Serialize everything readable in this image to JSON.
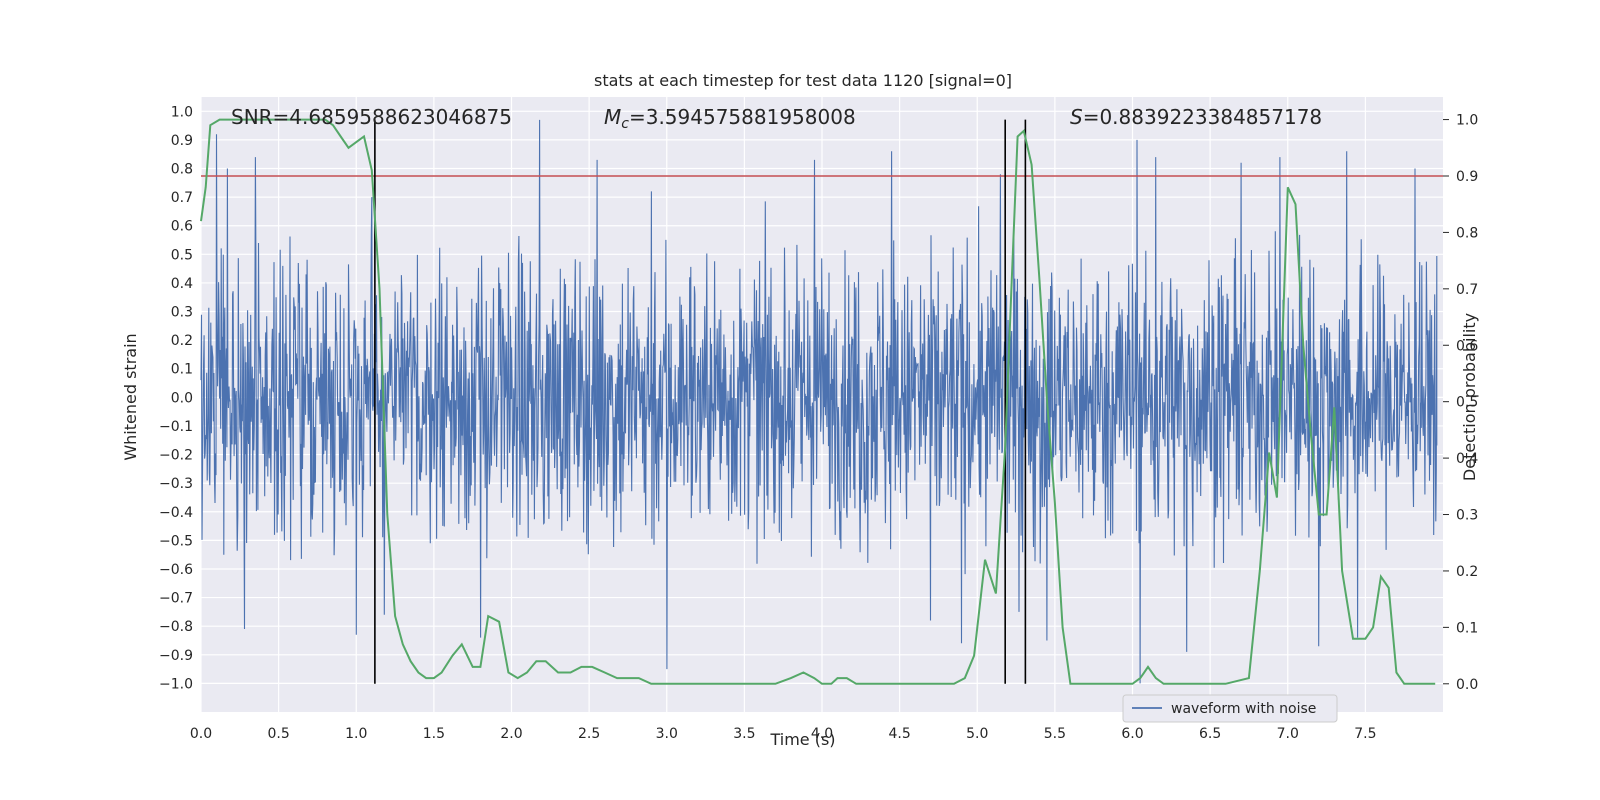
{
  "chart_data": {
    "type": "line",
    "title": "stats at each timestep for test data 1120 [signal=0]",
    "xlabel": "Time (s)",
    "ylabel_left": "Whitened strain",
    "ylabel_right": "Detection probability",
    "xlim": [
      0.0,
      8.0
    ],
    "ylim_left": [
      -1.1,
      1.05
    ],
    "ylim_right": [
      -0.05,
      1.04
    ],
    "x_ticks": [
      "0.0",
      "0.5",
      "1.0",
      "1.5",
      "2.0",
      "2.5",
      "3.0",
      "3.5",
      "4.0",
      "4.5",
      "5.0",
      "5.5",
      "6.0",
      "6.5",
      "7.0",
      "7.5"
    ],
    "x_tick_values": [
      0,
      0.5,
      1,
      1.5,
      2,
      2.5,
      3,
      3.5,
      4,
      4.5,
      5,
      5.5,
      6,
      6.5,
      7,
      7.5
    ],
    "y_left_ticks": [
      "1.0",
      "0.9",
      "0.8",
      "0.7",
      "0.6",
      "0.5",
      "0.4",
      "0.3",
      "0.2",
      "0.1",
      "0.0",
      "−0.1",
      "−0.2",
      "−0.3",
      "−0.4",
      "−0.5",
      "−0.6",
      "−0.7",
      "−0.8",
      "−0.9",
      "−1.0"
    ],
    "y_left_tick_values": [
      1.0,
      0.9,
      0.8,
      0.7,
      0.6,
      0.5,
      0.4,
      0.3,
      0.2,
      0.1,
      0.0,
      -0.1,
      -0.2,
      -0.3,
      -0.4,
      -0.5,
      -0.6,
      -0.7,
      -0.8,
      -0.9,
      -1.0
    ],
    "y_right_ticks": [
      "1.0",
      "0.9",
      "0.8",
      "0.7",
      "0.6",
      "0.5",
      "0.4",
      "0.3",
      "0.2",
      "0.1",
      "0.0"
    ],
    "y_right_tick_values": [
      1.0,
      0.9,
      0.8,
      0.7,
      0.6,
      0.5,
      0.4,
      0.3,
      0.2,
      0.1,
      0.0
    ],
    "threshold": 0.9,
    "vertical_lines": [
      1.12,
      5.18,
      5.31
    ],
    "annotations": {
      "snr": "SNR=4.6859588623046875",
      "mc_prefix": "M",
      "mc_sub": "c",
      "mc_value": "=3.594575881958008",
      "s_prefix": "S",
      "s_value": "=0.8839223384857178"
    },
    "legend": [
      "waveform with noise"
    ],
    "series": [
      {
        "name": "waveform with noise",
        "axis": "left",
        "color": "#4c72b0",
        "noise_amplitude": 0.45,
        "n_points": 2400,
        "spikes": [
          [
            0.1,
            0.92
          ],
          [
            0.17,
            0.8
          ],
          [
            0.35,
            0.84
          ],
          [
            0.28,
            -0.81
          ],
          [
            1.0,
            -0.83
          ],
          [
            1.18,
            -0.76
          ],
          [
            1.1,
            0.7
          ],
          [
            2.18,
            0.97
          ],
          [
            2.55,
            0.83
          ],
          [
            3.0,
            -0.95
          ],
          [
            3.95,
            0.83
          ],
          [
            4.45,
            0.86
          ],
          [
            4.9,
            -0.86
          ],
          [
            5.15,
            0.78
          ],
          [
            5.27,
            -0.75
          ],
          [
            5.45,
            -0.85
          ],
          [
            6.03,
            0.9
          ],
          [
            6.05,
            -1.0
          ],
          [
            6.35,
            -0.89
          ],
          [
            6.7,
            0.82
          ],
          [
            6.95,
            0.84
          ],
          [
            7.2,
            -0.87
          ],
          [
            7.38,
            0.86
          ],
          [
            7.45,
            -0.84
          ],
          [
            1.8,
            -0.84
          ],
          [
            2.9,
            0.72
          ],
          [
            4.7,
            -0.78
          ],
          [
            6.15,
            0.84
          ],
          [
            7.82,
            0.8
          ]
        ]
      },
      {
        "name": "detection probability",
        "axis": "right",
        "color": "#55a868",
        "x": [
          0.0,
          0.03,
          0.06,
          0.12,
          0.2,
          0.3,
          0.4,
          0.5,
          0.6,
          0.7,
          0.8,
          0.85,
          0.9,
          0.95,
          1.0,
          1.05,
          1.1,
          1.15,
          1.2,
          1.25,
          1.3,
          1.35,
          1.4,
          1.45,
          1.5,
          1.55,
          1.62,
          1.68,
          1.75,
          1.8,
          1.85,
          1.92,
          1.98,
          2.04,
          2.1,
          2.16,
          2.22,
          2.3,
          2.38,
          2.45,
          2.52,
          2.6,
          2.68,
          2.75,
          2.82,
          2.9,
          3.0,
          3.1,
          3.2,
          3.3,
          3.5,
          3.7,
          3.8,
          3.88,
          3.95,
          4.0,
          4.06,
          4.1,
          4.16,
          4.22,
          4.3,
          4.5,
          4.7,
          4.85,
          4.92,
          4.98,
          5.05,
          5.12,
          5.18,
          5.22,
          5.26,
          5.3,
          5.35,
          5.4,
          5.45,
          5.5,
          5.55,
          5.6,
          5.7,
          5.8,
          5.9,
          6.0,
          6.05,
          6.1,
          6.15,
          6.2,
          6.25,
          6.3,
          6.35,
          6.4,
          6.5,
          6.6,
          6.75,
          6.82,
          6.88,
          6.93,
          7.0,
          7.05,
          7.1,
          7.15,
          7.2,
          7.25,
          7.3,
          7.35,
          7.42,
          7.5,
          7.55,
          7.6,
          7.65,
          7.7,
          7.75,
          7.8,
          7.85,
          7.9,
          7.95
        ],
        "y": [
          0.82,
          0.88,
          0.99,
          1.0,
          1.0,
          1.0,
          1.0,
          1.0,
          1.0,
          1.0,
          1.0,
          0.99,
          0.97,
          0.95,
          0.96,
          0.97,
          0.91,
          0.7,
          0.3,
          0.12,
          0.07,
          0.04,
          0.02,
          0.01,
          0.01,
          0.02,
          0.05,
          0.07,
          0.03,
          0.03,
          0.12,
          0.11,
          0.02,
          0.01,
          0.02,
          0.04,
          0.04,
          0.02,
          0.02,
          0.03,
          0.03,
          0.02,
          0.01,
          0.01,
          0.01,
          0.0,
          0.0,
          0.0,
          0.0,
          0.0,
          0.0,
          0.0,
          0.01,
          0.02,
          0.01,
          0.0,
          0.0,
          0.01,
          0.01,
          0.0,
          0.0,
          0.0,
          0.0,
          0.0,
          0.01,
          0.05,
          0.22,
          0.16,
          0.42,
          0.7,
          0.97,
          0.98,
          0.92,
          0.72,
          0.5,
          0.32,
          0.1,
          0.0,
          0.0,
          0.0,
          0.0,
          0.0,
          0.01,
          0.03,
          0.01,
          0.0,
          0.0,
          0.0,
          0.0,
          0.0,
          0.0,
          0.0,
          0.01,
          0.2,
          0.41,
          0.33,
          0.88,
          0.85,
          0.6,
          0.44,
          0.3,
          0.3,
          0.49,
          0.2,
          0.08,
          0.08,
          0.1,
          0.19,
          0.17,
          0.02,
          0.0,
          0.0,
          0.0,
          0.0,
          0.0
        ]
      }
    ]
  },
  "colors": {
    "plot_bg": "#eaeaf2",
    "grid": "#ffffff",
    "threshold": "#c44e52",
    "vline": "#000000"
  }
}
